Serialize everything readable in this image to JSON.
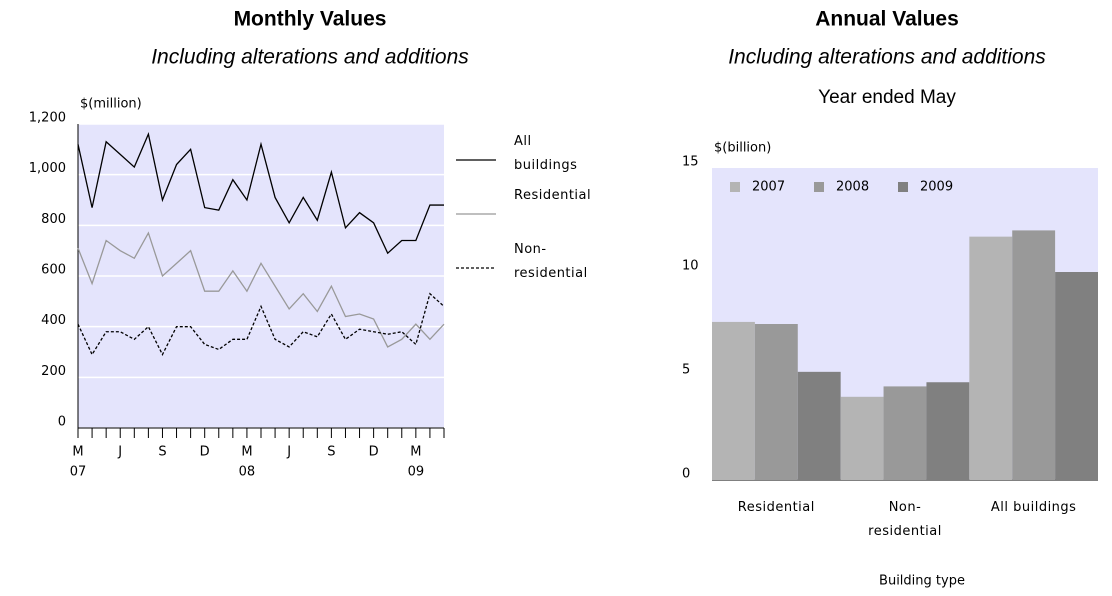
{
  "chart_data": [
    {
      "type": "line",
      "title": "Monthly Values",
      "subtitle": "Including alterations and additions",
      "y_label": "$(million)",
      "categories": [
        "M",
        null,
        null,
        "J",
        null,
        null,
        "S",
        null,
        null,
        "D",
        null,
        null,
        "M",
        null,
        null,
        "J",
        null,
        null,
        "S",
        null,
        null,
        "D",
        null,
        null,
        "M",
        null,
        null
      ],
      "year_labels": [
        "07",
        "08",
        "09"
      ],
      "series": [
        {
          "name": "All buildings",
          "color": "#000000",
          "dash": false,
          "values": [
            1120,
            870,
            1130,
            1080,
            1030,
            1160,
            900,
            1040,
            1100,
            870,
            860,
            980,
            900,
            1120,
            910,
            810,
            910,
            820,
            1010,
            790,
            850,
            810,
            690,
            740,
            740,
            880,
            880
          ]
        },
        {
          "name": "Residential",
          "color": "#999999",
          "dash": false,
          "values": [
            710,
            570,
            740,
            700,
            670,
            770,
            600,
            650,
            700,
            540,
            540,
            620,
            540,
            650,
            560,
            470,
            530,
            460,
            560,
            440,
            450,
            430,
            320,
            350,
            410,
            350,
            410
          ]
        },
        {
          "name": "Non-residential",
          "color": "#000000",
          "dash": true,
          "values": [
            410,
            290,
            380,
            380,
            350,
            400,
            290,
            400,
            400,
            330,
            310,
            350,
            350,
            480,
            350,
            320,
            380,
            360,
            450,
            350,
            390,
            380,
            370,
            380,
            330,
            530,
            480
          ]
        }
      ],
      "ylim": [
        0,
        1200
      ],
      "yticks": [
        0,
        200,
        400,
        600,
        800,
        {
          "value": 1000,
          "label": "1,000"
        },
        {
          "value": 1200,
          "label": "1,200"
        }
      ],
      "grid": true,
      "background": "#e4e4fc"
    },
    {
      "type": "bar",
      "title": "Annual Values",
      "subtitle": "Including alterations and additions",
      "subtitle2": "Year ended May",
      "y_label": "$(billion)",
      "x_label": "Building type",
      "categories": [
        "Residential",
        "Non-residential",
        "All buildings"
      ],
      "series": [
        {
          "name": "2007",
          "color": "#b4b4b4",
          "values": [
            7.6,
            4.0,
            11.7
          ]
        },
        {
          "name": "2008",
          "color": "#999999",
          "values": [
            7.5,
            4.5,
            12.0
          ]
        },
        {
          "name": "2009",
          "color": "#808080",
          "values": [
            5.2,
            4.7,
            10.0
          ]
        }
      ],
      "ylim": [
        0,
        15
      ],
      "yticks": [
        0,
        5,
        10,
        15
      ],
      "grid": false,
      "legend": "top-left",
      "background": "#e4e4fc"
    }
  ]
}
